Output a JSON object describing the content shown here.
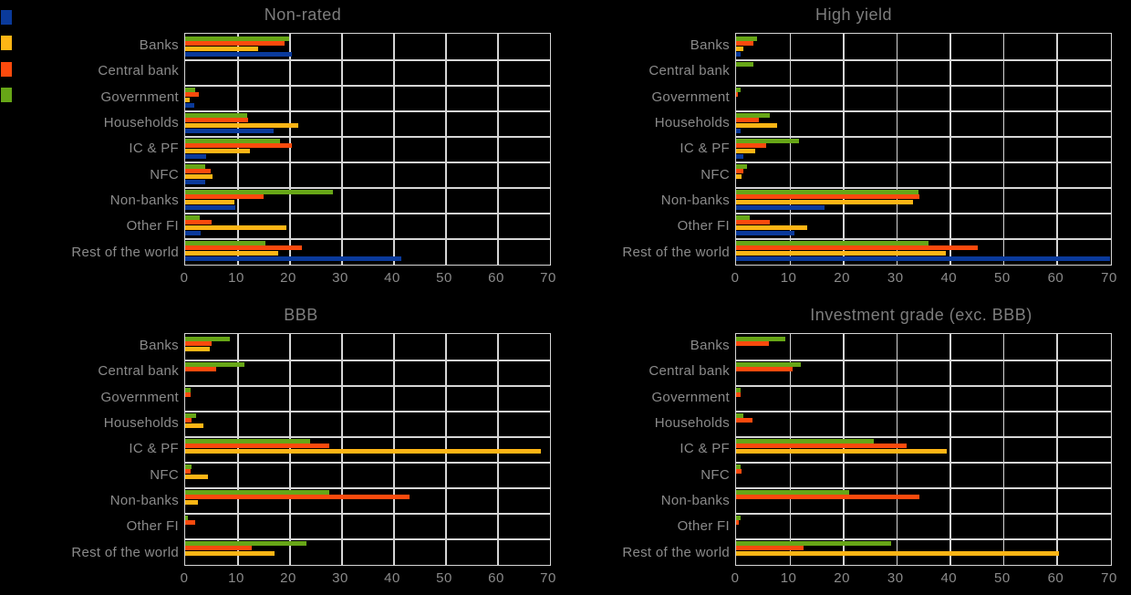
{
  "background": "#000000",
  "text_color": "#8a8a8a",
  "title_color": "#7d7d7d",
  "grid_color": "#d6d6d6",
  "legend": {
    "swatches": [
      {
        "name": "blue",
        "color": "#0a3a9b"
      },
      {
        "name": "yellow",
        "color": "#fdb515"
      },
      {
        "name": "orange-red",
        "color": "#fc4a0d"
      },
      {
        "name": "green",
        "color": "#67a617"
      }
    ]
  },
  "categories": [
    "Banks",
    "Central bank",
    "Government",
    "Households",
    "IC & PF",
    "NFC",
    "Non-banks",
    "Other FI",
    "Rest of the world"
  ],
  "x_axis": {
    "ticks": [
      "0",
      "10",
      "20",
      "30",
      "40",
      "50",
      "60",
      "70"
    ],
    "min": 0,
    "max": 70
  },
  "chart_data": [
    {
      "type": "bar",
      "orientation": "horizontal",
      "title": "Non-rated",
      "xlim": [
        0,
        70
      ],
      "grid": true,
      "bar_order": "top-to-bottom",
      "series": [
        {
          "name": "green",
          "color": "#67a617",
          "values": [
            20.0,
            0,
            1.9,
            12.0,
            18.2,
            3.8,
            28.5,
            2.8,
            15.4
          ]
        },
        {
          "name": "orange-red",
          "color": "#fc4a0d",
          "values": [
            19.2,
            0,
            2.6,
            12.1,
            20.6,
            4.9,
            15.1,
            5.0,
            22.4
          ]
        },
        {
          "name": "yellow",
          "color": "#fdb515",
          "values": [
            14.1,
            0,
            0.9,
            21.7,
            12.4,
            5.3,
            9.4,
            19.5,
            17.9
          ]
        },
        {
          "name": "blue",
          "color": "#0a3a9b",
          "values": [
            20.5,
            0,
            1.8,
            17.0,
            4.1,
            3.8,
            9.7,
            3.0,
            41.5
          ]
        }
      ]
    },
    {
      "type": "bar",
      "orientation": "horizontal",
      "title": "High yield",
      "xlim": [
        0,
        70
      ],
      "grid": true,
      "bar_order": "top-to-bottom",
      "series": [
        {
          "name": "green",
          "color": "#67a617",
          "values": [
            3.9,
            3.3,
            0.8,
            6.3,
            11.7,
            2.0,
            34.1,
            2.5,
            36.1
          ]
        },
        {
          "name": "orange-red",
          "color": "#fc4a0d",
          "values": [
            3.3,
            0,
            0.3,
            4.3,
            5.6,
            1.4,
            34.4,
            6.3,
            45.3
          ]
        },
        {
          "name": "yellow",
          "color": "#fdb515",
          "values": [
            1.4,
            0,
            0,
            7.7,
            3.6,
            1.1,
            33.2,
            13.4,
            39.3
          ]
        },
        {
          "name": "blue",
          "color": "#0a3a9b",
          "values": [
            0.8,
            0,
            0,
            0.8,
            1.3,
            0,
            16.6,
            10.9,
            70.0
          ]
        }
      ]
    },
    {
      "type": "bar",
      "orientation": "horizontal",
      "title": "BBB",
      "xlim": [
        0,
        70
      ],
      "grid": true,
      "bar_order": "top-to-bottom",
      "series": [
        {
          "name": "green",
          "color": "#67a617",
          "values": [
            8.6,
            11.4,
            1.0,
            2.1,
            24.1,
            1.2,
            27.7,
            0.5,
            23.4
          ]
        },
        {
          "name": "orange-red",
          "color": "#fc4a0d",
          "values": [
            5.1,
            5.9,
            1.0,
            1.3,
            27.7,
            1.0,
            43.2,
            2.0,
            12.8
          ]
        },
        {
          "name": "yellow",
          "color": "#fdb515",
          "values": [
            4.7,
            0,
            0,
            3.5,
            68.5,
            4.4,
            2.4,
            0,
            17.2
          ]
        },
        {
          "name": "blue",
          "color": "#0a3a9b",
          "values": [
            0,
            0,
            0,
            0,
            0,
            0,
            0,
            0,
            0
          ]
        }
      ]
    },
    {
      "type": "bar",
      "orientation": "horizontal",
      "title": "Investment grade (exc. BBB)",
      "xlim": [
        0,
        70
      ],
      "grid": true,
      "bar_order": "top-to-bottom",
      "series": [
        {
          "name": "green",
          "color": "#67a617",
          "values": [
            9.2,
            12.1,
            0.9,
            1.3,
            25.7,
            0.8,
            21.2,
            0.8,
            29.1
          ]
        },
        {
          "name": "orange-red",
          "color": "#fc4a0d",
          "values": [
            6.1,
            10.6,
            0.8,
            3.1,
            32.0,
            1.0,
            34.4,
            0.5,
            12.6
          ]
        },
        {
          "name": "yellow",
          "color": "#fdb515",
          "values": [
            0,
            0,
            0,
            0,
            39.4,
            0,
            0,
            0,
            60.4
          ]
        },
        {
          "name": "blue",
          "color": "#0a3a9b",
          "values": [
            0,
            0,
            0,
            0,
            0,
            0,
            0,
            0,
            0
          ]
        }
      ]
    }
  ]
}
